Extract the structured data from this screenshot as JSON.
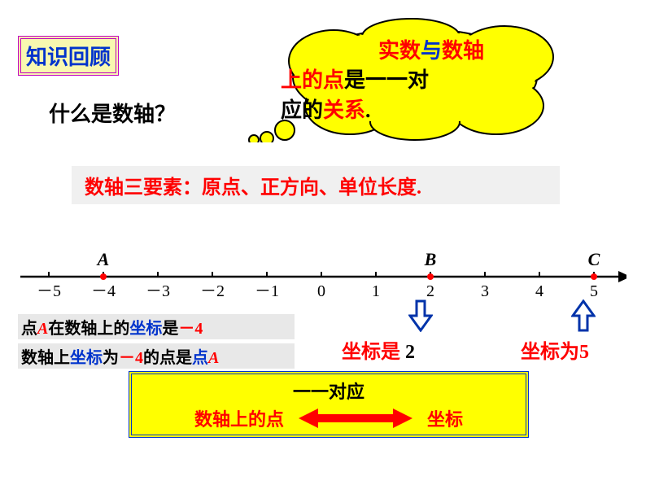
{
  "title": "知识回顾",
  "question": "什么是数轴？",
  "cloud": {
    "t1": "实数",
    "t2": "与",
    "t3": "数轴",
    "t4": "上的点",
    "t5": "是一一对",
    "t6": "应的",
    "t7": "关系",
    "t8": "."
  },
  "elements": "数轴三要素：原点、正方向、单位长度.",
  "axis": {
    "ticks": [
      "－5",
      "－4",
      "－3",
      "－2",
      "－1",
      "0",
      "1",
      "2",
      "3",
      "4",
      "5"
    ],
    "pointA": "A",
    "pointB": "B",
    "pointC": "C",
    "tickStart": 40,
    "tickStep": 67,
    "y": 55,
    "color": "#000000",
    "pointColor": "#ff0000"
  },
  "annot1": {
    "a": "点",
    "b": "A",
    "c": "在数轴上的",
    "d": "坐标",
    "e": "是",
    "f": "－4"
  },
  "annot2": {
    "a": "数轴上",
    "b": "坐标",
    "c": "为",
    "d": "－4",
    "e": "的点是",
    "f": "点",
    "g": "A"
  },
  "coordB": {
    "pre": "坐标是 ",
    "val": "2"
  },
  "coordC": {
    "pre": "坐标为",
    "val": "5"
  },
  "summary": {
    "top": "一一对应",
    "left": "数轴上的点",
    "right": "坐标"
  },
  "colors": {
    "red": "#ff0000",
    "blue": "#0033cc",
    "yellow": "#ffff00",
    "purple": "#c000c0",
    "black": "#000000",
    "arrowStroke": "#0033aa"
  }
}
